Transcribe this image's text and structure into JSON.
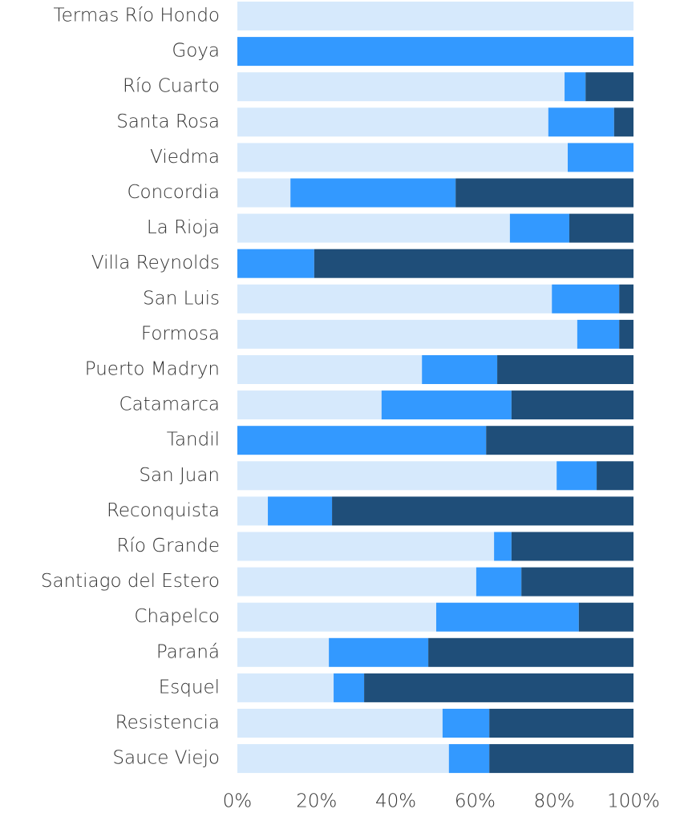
{
  "chart_data": {
    "type": "stacked-bar-horizontal",
    "categories": [
      "Termas Río Hondo",
      "Goya",
      "Río Cuarto",
      "Santa Rosa",
      "Viedma",
      "Concordia",
      "La Rioja",
      "Villa Reynolds",
      "San Luis",
      "Formosa",
      "Puerto Madryn",
      "Catamarca",
      "Tandil",
      "San Juan",
      "Reconquista",
      "Río Grande",
      "Santiago del Estero",
      "Chapelco",
      "Paraná",
      "Esquel",
      "Resistencia",
      "Sauce Viejo"
    ],
    "series": [
      {
        "color": "#d6e9fc",
        "values": [
          100,
          0,
          82.6,
          78.5,
          83.4,
          13.4,
          68.8,
          0,
          79.4,
          85.8,
          46.6,
          36.4,
          0,
          80.6,
          7.7,
          64.8,
          60.3,
          50.2,
          23.1,
          24.3,
          51.8,
          53.4
        ]
      },
      {
        "color": "#3399ff",
        "values": [
          0,
          100,
          5.3,
          16.6,
          16.6,
          41.7,
          15.0,
          19.4,
          17.0,
          10.6,
          19.0,
          32.8,
          62.8,
          10.1,
          16.2,
          4.4,
          11.4,
          36.0,
          25.1,
          7.7,
          11.8,
          10.2
        ]
      },
      {
        "color": "#1f4e79",
        "values": [
          0,
          0,
          12.1,
          4.9,
          0,
          44.9,
          16.2,
          80.6,
          3.6,
          3.6,
          34.4,
          30.8,
          37.2,
          9.3,
          76.1,
          30.8,
          28.3,
          13.8,
          51.8,
          68.0,
          36.4,
          36.4
        ]
      }
    ],
    "xlim": [
      0,
      100
    ],
    "xticks": [
      {
        "value": 0,
        "label": "0%"
      },
      {
        "value": 20,
        "label": "20%"
      },
      {
        "value": 40,
        "label": "40%"
      },
      {
        "value": 60,
        "label": "60%"
      },
      {
        "value": 80,
        "label": "80%"
      },
      {
        "value": 100,
        "label": "100%"
      }
    ]
  }
}
